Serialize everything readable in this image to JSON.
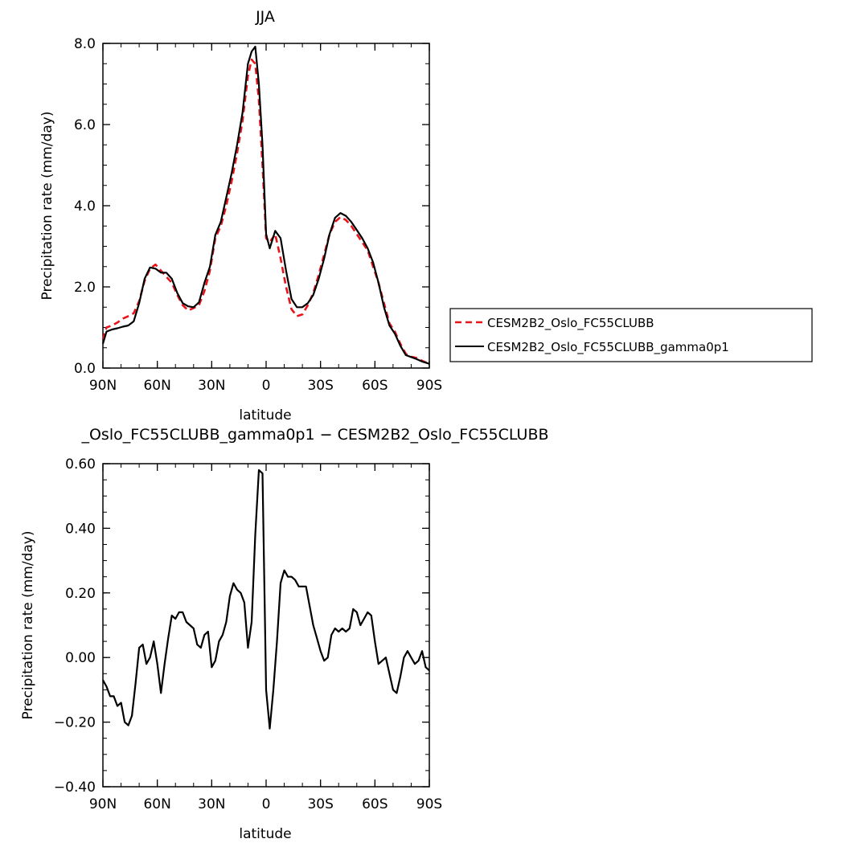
{
  "colors": {
    "series_dashed": "#e8141c",
    "series_solid": "#000000",
    "axes": "#000000"
  },
  "chart_data": [
    {
      "type": "line",
      "title": "JJA",
      "xlabel": "latitude",
      "ylabel": "Precipitation rate (mm/day)",
      "xlim": [
        90,
        -90
      ],
      "ylim": [
        0.0,
        8.0
      ],
      "x_ticks": [
        90,
        60,
        30,
        0,
        -30,
        -60,
        -90
      ],
      "x_tick_labels": [
        "90N",
        "60N",
        "30N",
        "0",
        "30S",
        "60S",
        "90S"
      ],
      "y_ticks": [
        0.0,
        2.0,
        4.0,
        6.0,
        8.0
      ],
      "y_tick_labels": [
        "0.0",
        "2.0",
        "4.0",
        "6.0",
        "8.0"
      ],
      "grid": false,
      "legend": "right",
      "series": [
        {
          "name": "CESM2B2_Oslo_FC55CLUBB",
          "color": "#e8141c",
          "dash": true,
          "x": [
            90,
            88,
            85,
            82,
            79,
            76,
            73,
            70,
            67,
            64,
            61,
            58,
            55,
            52,
            49,
            46,
            43,
            40,
            37,
            34,
            31,
            28,
            25,
            22,
            19,
            16,
            13,
            10,
            8,
            6,
            4,
            2,
            0,
            -2,
            -5,
            -8,
            -11,
            -14,
            -17,
            -20,
            -23,
            -26,
            -29,
            -32,
            -35,
            -38,
            -41,
            -44,
            -47,
            -50,
            -53,
            -56,
            -59,
            -62,
            -65,
            -68,
            -71,
            -74,
            -77,
            -80,
            -83,
            -86,
            -89,
            -90
          ],
          "y": [
            0.7,
            1.0,
            1.05,
            1.12,
            1.22,
            1.28,
            1.35,
            1.65,
            2.15,
            2.45,
            2.55,
            2.4,
            2.25,
            2.1,
            1.8,
            1.55,
            1.42,
            1.48,
            1.55,
            1.9,
            2.4,
            3.2,
            3.5,
            4.0,
            4.6,
            5.3,
            6.1,
            7.2,
            7.6,
            7.5,
            6.6,
            5.0,
            3.2,
            3.1,
            3.3,
            2.7,
            2.0,
            1.45,
            1.28,
            1.32,
            1.55,
            1.85,
            2.3,
            2.8,
            3.3,
            3.6,
            3.72,
            3.65,
            3.5,
            3.3,
            3.1,
            2.9,
            2.5,
            2.1,
            1.6,
            1.1,
            0.9,
            0.6,
            0.35,
            0.28,
            0.25,
            0.18,
            0.12,
            0.1
          ]
        },
        {
          "name": "CESM2B2_Oslo_FC55CLUBB_gamma0p1",
          "color": "#000000",
          "dash": false,
          "x": [
            90,
            88,
            85,
            82,
            79,
            76,
            73,
            70,
            67,
            64,
            61,
            58,
            55,
            52,
            49,
            46,
            43,
            40,
            37,
            34,
            31,
            28,
            25,
            22,
            19,
            16,
            13,
            10,
            8,
            6,
            4,
            2,
            0,
            -2,
            -5,
            -8,
            -11,
            -14,
            -17,
            -20,
            -23,
            -26,
            -29,
            -32,
            -35,
            -38,
            -41,
            -44,
            -47,
            -50,
            -53,
            -56,
            -59,
            -62,
            -65,
            -68,
            -71,
            -74,
            -77,
            -80,
            -83,
            -86,
            -89,
            -90
          ],
          "y": [
            0.6,
            0.9,
            0.95,
            0.98,
            1.02,
            1.05,
            1.15,
            1.6,
            2.2,
            2.48,
            2.45,
            2.35,
            2.35,
            2.2,
            1.85,
            1.6,
            1.52,
            1.5,
            1.62,
            2.1,
            2.5,
            3.28,
            3.6,
            4.2,
            4.8,
            5.5,
            6.3,
            7.5,
            7.8,
            7.92,
            7.0,
            5.5,
            3.3,
            2.95,
            3.38,
            3.2,
            2.4,
            1.7,
            1.5,
            1.5,
            1.6,
            1.8,
            2.2,
            2.7,
            3.3,
            3.7,
            3.82,
            3.75,
            3.6,
            3.4,
            3.2,
            2.95,
            2.6,
            2.1,
            1.5,
            1.05,
            0.85,
            0.55,
            0.32,
            0.27,
            0.22,
            0.16,
            0.12,
            0.1
          ]
        }
      ]
    },
    {
      "type": "line",
      "title": "_Oslo_FC55CLUBB_gamma0p1 − CESM2B2_Oslo_FC55CLUBB",
      "xlabel": "latitude",
      "ylabel": "Precipitation rate (mm/day)",
      "xlim": [
        90,
        -90
      ],
      "ylim": [
        -0.4,
        0.6
      ],
      "x_ticks": [
        90,
        60,
        30,
        0,
        -30,
        -60,
        -90
      ],
      "x_tick_labels": [
        "90N",
        "60N",
        "30N",
        "0",
        "30S",
        "60S",
        "90S"
      ],
      "y_ticks": [
        -0.4,
        -0.2,
        0.0,
        0.2,
        0.4,
        0.6
      ],
      "y_tick_labels": [
        "−0.40",
        "−0.20",
        "0.00",
        "0.20",
        "0.40",
        "0.60"
      ],
      "grid": false,
      "series": [
        {
          "color": "#000000",
          "dash": false,
          "x": [
            90,
            88,
            86,
            84,
            82,
            80,
            78,
            76,
            74,
            72,
            70,
            68,
            66,
            64,
            62,
            60,
            58,
            56,
            54,
            52,
            50,
            48,
            46,
            44,
            42,
            40,
            38,
            36,
            34,
            32,
            30,
            28,
            26,
            24,
            22,
            20,
            18,
            16,
            14,
            12,
            10,
            8,
            6,
            4,
            2,
            0,
            -2,
            -4,
            -6,
            -8,
            -10,
            -12,
            -14,
            -16,
            -18,
            -20,
            -22,
            -24,
            -26,
            -28,
            -30,
            -32,
            -34,
            -36,
            -38,
            -40,
            -42,
            -44,
            -46,
            -48,
            -50,
            -52,
            -54,
            -56,
            -58,
            -60,
            -62,
            -64,
            -66,
            -68,
            -70,
            -72,
            -74,
            -76,
            -78,
            -80,
            -82,
            -84,
            -86,
            -88,
            -90
          ],
          "y": [
            -0.07,
            -0.09,
            -0.12,
            -0.12,
            -0.15,
            -0.14,
            -0.2,
            -0.21,
            -0.18,
            -0.08,
            0.03,
            0.04,
            -0.02,
            0.0,
            0.05,
            -0.02,
            -0.11,
            -0.02,
            0.06,
            0.13,
            0.12,
            0.14,
            0.14,
            0.11,
            0.1,
            0.09,
            0.04,
            0.03,
            0.07,
            0.08,
            -0.03,
            -0.01,
            0.05,
            0.07,
            0.11,
            0.19,
            0.23,
            0.21,
            0.2,
            0.17,
            0.03,
            0.11,
            0.38,
            0.58,
            0.57,
            -0.1,
            -0.22,
            -0.1,
            0.05,
            0.23,
            0.27,
            0.25,
            0.25,
            0.24,
            0.22,
            0.22,
            0.22,
            0.16,
            0.1,
            0.06,
            0.02,
            -0.01,
            0.0,
            0.07,
            0.09,
            0.08,
            0.09,
            0.08,
            0.09,
            0.15,
            0.14,
            0.1,
            0.12,
            0.14,
            0.13,
            0.05,
            -0.02,
            -0.01,
            0.0,
            -0.05,
            -0.1,
            -0.11,
            -0.06,
            0.0,
            0.02,
            0.0,
            -0.02,
            -0.01,
            0.02,
            -0.03,
            -0.04
          ]
        }
      ]
    }
  ]
}
